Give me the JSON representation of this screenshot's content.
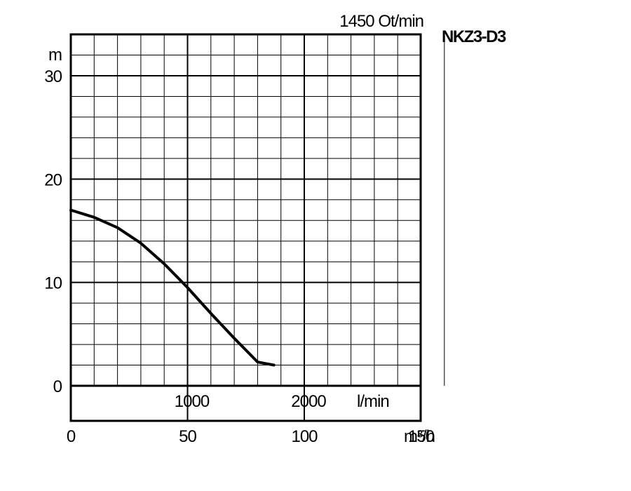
{
  "chart_data": {
    "type": "line",
    "title": "1450 Ot/min",
    "model": "NKZ3-D3",
    "xlabel": "m³/h",
    "ylabel": "m",
    "xlim": [
      0,
      170
    ],
    "ylim": [
      0,
      34
    ],
    "x_ticks": [
      0,
      50,
      100,
      150
    ],
    "y_ticks": [
      0,
      10,
      20,
      30
    ],
    "secondary_x": {
      "label": "l/min",
      "ticks": [
        1000,
        2000
      ]
    },
    "grid": true,
    "series": [
      {
        "x": [
          0,
          10,
          20,
          30,
          40,
          50,
          60,
          70,
          80,
          87
        ],
        "y": [
          17,
          16.3,
          15.3,
          13.8,
          11.8,
          9.5,
          7.0,
          4.6,
          2.3,
          2.0
        ]
      }
    ]
  }
}
